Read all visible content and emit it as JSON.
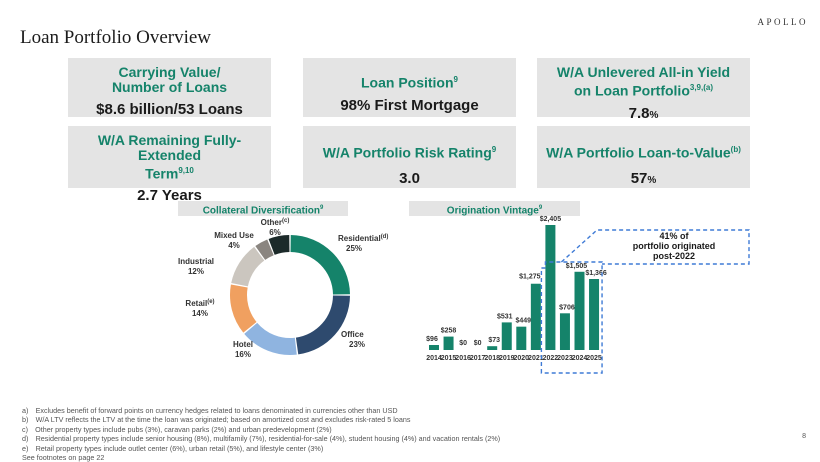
{
  "header": {
    "logo": "APOLLO",
    "title": "Loan Portfolio Overview"
  },
  "kpis": {
    "carrying": {
      "label_line1": "Carrying Value/",
      "label_line2": "Number of Loans",
      "value": "$8.6 billion/53 Loans"
    },
    "position": {
      "label": "Loan Position",
      "sup": "9",
      "value": "98% First Mortgage"
    },
    "yield": {
      "label_line1": "W/A Unlevered All-in Yield",
      "label_line2": "on Loan Portfolio",
      "sup": "3,9,(a)",
      "value": "7.8",
      "unit": "%"
    },
    "term": {
      "label_line1": "W/A Remaining Fully-Extended",
      "label_line2": "Term",
      "sup": "9,10",
      "value": "2.7 Years"
    },
    "risk": {
      "label": "W/A Portfolio Risk Rating",
      "sup": "9",
      "value": "3.0"
    },
    "ltv": {
      "label": "W/A Portfolio Loan-to-Value",
      "sup": "(b)",
      "value": "57",
      "unit": "%"
    }
  },
  "sections": {
    "collateral": {
      "label": "Collateral Diversification",
      "sup": "9"
    },
    "vintage": {
      "label": "Origination Vintage",
      "sup": "9"
    }
  },
  "chart_data": [
    {
      "type": "pie",
      "slices": [
        {
          "name": "Residential",
          "sup": "(d)",
          "value": 25,
          "label": "25%",
          "color": "#15836a"
        },
        {
          "name": "Office",
          "sup": "",
          "value": 23,
          "label": "23%",
          "color": "#2e4a6e"
        },
        {
          "name": "Hotel",
          "sup": "",
          "value": 16,
          "label": "16%",
          "color": "#8fb4e0"
        },
        {
          "name": "Retail",
          "sup": "(e)",
          "value": 14,
          "label": "14%",
          "color": "#f0a060"
        },
        {
          "name": "Industrial",
          "sup": "",
          "value": 12,
          "label": "12%",
          "color": "#cbc6bf"
        },
        {
          "name": "Mixed Use",
          "sup": "",
          "value": 4,
          "label": "4%",
          "color": "#8a8580"
        },
        {
          "name": "Other",
          "sup": "(c)",
          "value": 6,
          "label": "6%",
          "color": "#1c2a2a"
        }
      ]
    },
    {
      "type": "bar",
      "categories": [
        "2014",
        "2015",
        "2016",
        "2017",
        "2018",
        "2019",
        "2020",
        "2021",
        "2022",
        "2023",
        "2024",
        "2025"
      ],
      "values": [
        96,
        258,
        0,
        0,
        73,
        531,
        449,
        1275,
        2405,
        706,
        1505,
        1366
      ],
      "labels": [
        "$96",
        "$258",
        "$0",
        "$0",
        "$73",
        "$531",
        "$449",
        "$1,275",
        "$2,405",
        "$706",
        "$1,505",
        "$1,366"
      ],
      "color": "#15836a",
      "callout": {
        "line1": "41% of",
        "line2": "portfolio originated",
        "line3": "post-2022"
      }
    }
  ],
  "footnotes": [
    "a) Excludes benefit of forward points on currency hedges related to loans denominated in currencies other than USD",
    "b) W/A LTV reflects the LTV at the time the loan was originated; based on amortized cost and excludes risk-rated 5 loans",
    "c) Other property types include pubs (3%), caravan parks (2%) and urban predevelopment (2%)",
    "d) Residential property types include senior housing (8%), multifamily (7%), residential-for-sale (4%), student housing (4%) and vacation rentals (2%)",
    "e) Retail property types include outlet center (6%), urban retail (5%), and lifestyle center (3%)",
    "See footnotes on page 22"
  ],
  "page_number": "8"
}
